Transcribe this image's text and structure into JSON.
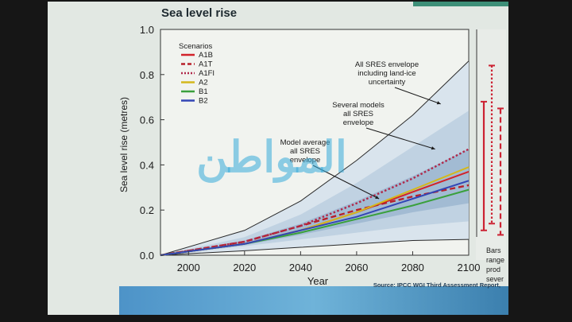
{
  "slide": {
    "title": "Sea level rise",
    "source": "Source: IPCC WGI Third Assessment Report,",
    "watermark": "المواطن",
    "right_note": [
      "Bars",
      "range",
      "prod",
      "sever"
    ]
  },
  "chart_data": {
    "type": "line",
    "title": "Sea level rise",
    "xlabel": "Year",
    "ylabel": "Sea level rise (metres)",
    "xlim": [
      1990,
      2100
    ],
    "ylim": [
      0.0,
      1.0
    ],
    "xticks": [
      2000,
      2020,
      2040,
      2060,
      2080,
      2100
    ],
    "yticks": [
      0.0,
      0.2,
      0.4,
      0.6,
      0.8,
      1.0
    ],
    "legend": {
      "title": "Scenarios",
      "position": "top-left"
    },
    "series": [
      {
        "name": "A1B",
        "color": "#d2232a",
        "dash": "solid",
        "x": [
          1990,
          2020,
          2040,
          2060,
          2080,
          2100
        ],
        "y": [
          0.0,
          0.05,
          0.11,
          0.19,
          0.28,
          0.37
        ]
      },
      {
        "name": "A1T",
        "color": "#b8202a",
        "dash": "dashed",
        "x": [
          1990,
          2020,
          2040,
          2060,
          2080,
          2100
        ],
        "y": [
          0.0,
          0.06,
          0.13,
          0.2,
          0.26,
          0.31
        ]
      },
      {
        "name": "A1FI",
        "color": "#b0284a",
        "dash": "dotted",
        "x": [
          1990,
          2020,
          2040,
          2060,
          2080,
          2100
        ],
        "y": [
          0.0,
          0.06,
          0.13,
          0.23,
          0.34,
          0.47
        ]
      },
      {
        "name": "A2",
        "color": "#d4b81c",
        "dash": "solid",
        "x": [
          1990,
          2020,
          2040,
          2060,
          2080,
          2100
        ],
        "y": [
          0.0,
          0.05,
          0.11,
          0.19,
          0.29,
          0.39
        ]
      },
      {
        "name": "B1",
        "color": "#3aa03c",
        "dash": "solid",
        "x": [
          1990,
          2020,
          2040,
          2060,
          2080,
          2100
        ],
        "y": [
          0.0,
          0.05,
          0.1,
          0.16,
          0.22,
          0.29
        ]
      },
      {
        "name": "B2",
        "color": "#3346b5",
        "dash": "solid",
        "x": [
          1990,
          2020,
          2040,
          2060,
          2080,
          2100
        ],
        "y": [
          0.0,
          0.05,
          0.11,
          0.17,
          0.25,
          0.33
        ]
      }
    ],
    "envelopes": {
      "outer": {
        "x": [
          1990,
          2020,
          2040,
          2060,
          2080,
          2100
        ],
        "lower": [
          0.0,
          0.02,
          0.035,
          0.05,
          0.065,
          0.07
        ],
        "upper": [
          0.0,
          0.11,
          0.24,
          0.42,
          0.62,
          0.86
        ]
      },
      "models": {
        "x": [
          1990,
          2020,
          2040,
          2060,
          2080,
          2100
        ],
        "lower": [
          0.0,
          0.04,
          0.07,
          0.1,
          0.13,
          0.15
        ],
        "upper": [
          0.0,
          0.08,
          0.18,
          0.32,
          0.48,
          0.64
        ]
      },
      "average": {
        "x": [
          1990,
          2020,
          2040,
          2060,
          2080,
          2100
        ],
        "lower": [
          0.0,
          0.045,
          0.09,
          0.14,
          0.19,
          0.23
        ],
        "upper": [
          0.0,
          0.065,
          0.14,
          0.24,
          0.35,
          0.47
        ]
      }
    },
    "annotations": [
      {
        "lines": [
          "All SRES envelope",
          "including land-ice",
          "uncertainty"
        ],
        "arrow_to": [
          2090,
          0.67
        ]
      },
      {
        "lines": [
          "Several models",
          "all SRES",
          "envelope"
        ],
        "arrow_to": [
          2088,
          0.47
        ]
      },
      {
        "lines": [
          "Model average",
          "all SRES",
          "envelope"
        ],
        "arrow_to": [
          2068,
          0.25
        ]
      }
    ],
    "range_bars": [
      {
        "color": "#cc2233",
        "dash": "solid",
        "low": 0.11,
        "high": 0.68
      },
      {
        "color": "#cc2233",
        "dash": "dotted",
        "low": 0.14,
        "high": 0.84
      },
      {
        "color": "#cc2233",
        "dash": "dashed",
        "low": 0.09,
        "high": 0.65
      }
    ]
  }
}
